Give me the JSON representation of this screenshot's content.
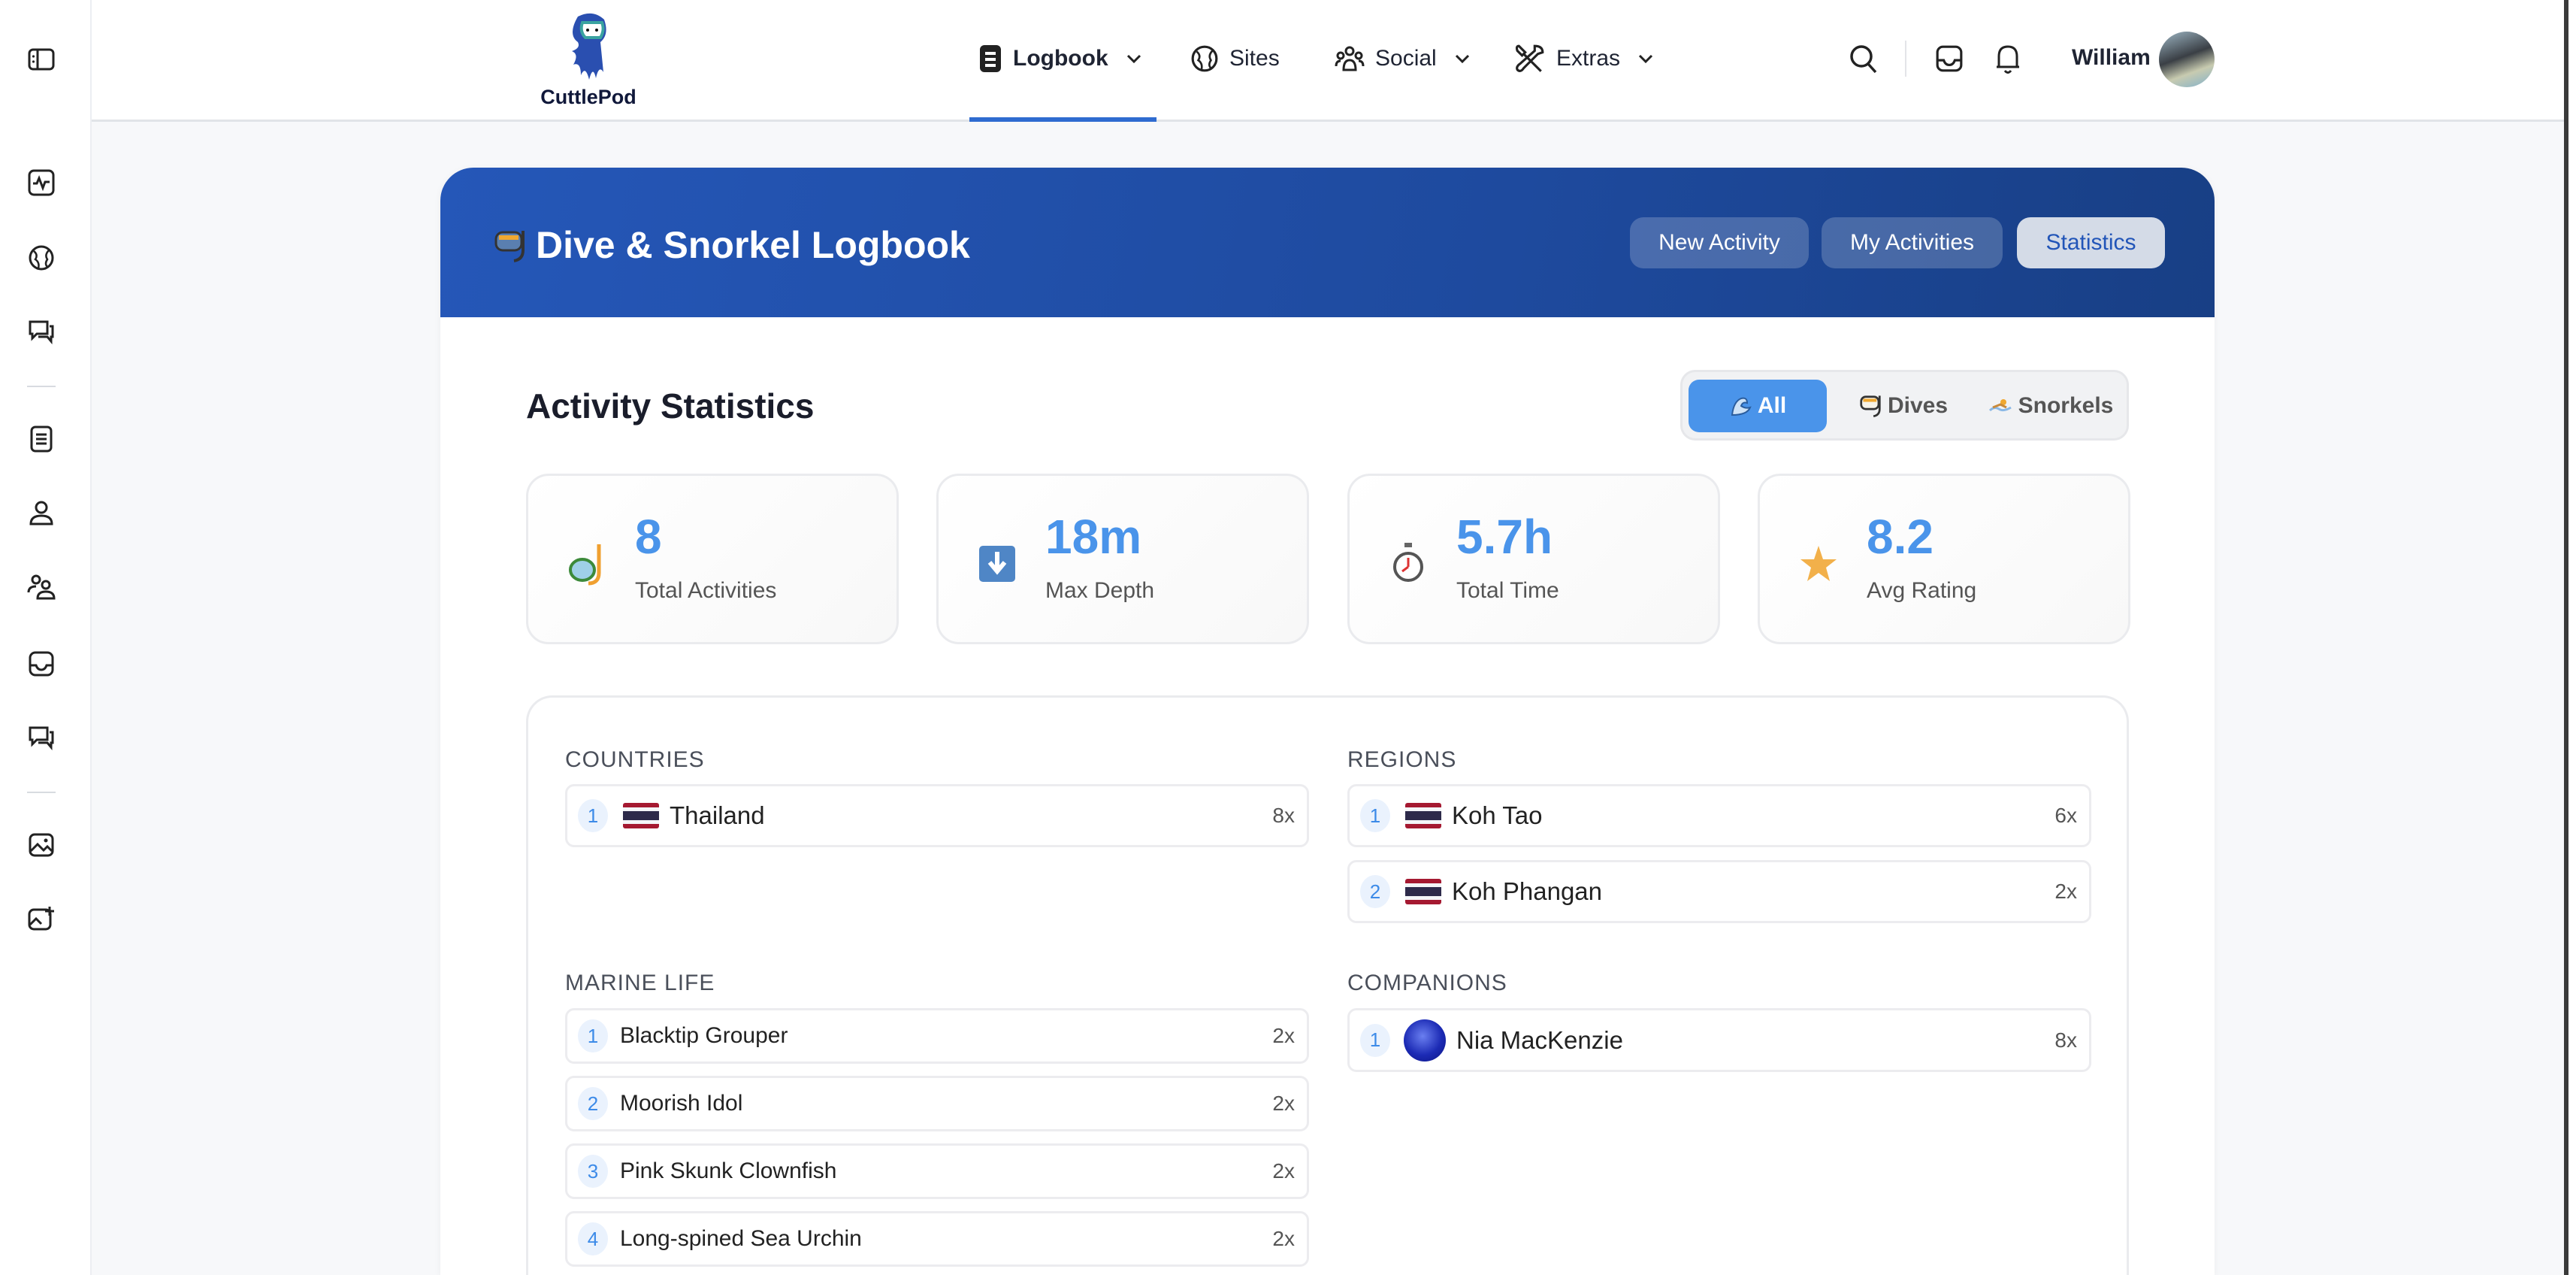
{
  "brand": {
    "name": "CuttlePod"
  },
  "nav": {
    "items": [
      {
        "label": "Logbook",
        "icon": "logbook-icon",
        "dropdown": true,
        "active": true
      },
      {
        "label": "Sites",
        "icon": "globe-icon",
        "dropdown": false
      },
      {
        "label": "Social",
        "icon": "users-icon",
        "dropdown": true
      },
      {
        "label": "Extras",
        "icon": "tools-icon",
        "dropdown": true
      }
    ],
    "right_icons": [
      "search-icon",
      "inbox-icon",
      "bell-icon"
    ]
  },
  "user": {
    "name": "William"
  },
  "sidebar": {
    "icons": [
      "sidebar-toggle-icon",
      "activity-icon",
      "globe-icon",
      "chat-icon",
      "logbook-icon",
      "user-icon",
      "users-icon",
      "inbox-icon",
      "messages-icon",
      "gallery-icon",
      "add-photo-icon"
    ]
  },
  "header": {
    "title": "Dive & Snorkel Logbook",
    "buttons": [
      "New Activity",
      "My Activities",
      "Statistics"
    ],
    "active_button": "Statistics"
  },
  "stats": {
    "title": "Activity Statistics",
    "filters": [
      "All",
      "Dives",
      "Snorkels"
    ],
    "active_filter": "All",
    "cards": [
      {
        "value": "8",
        "label": "Total Activities",
        "icon": "snorkel-mask-icon"
      },
      {
        "value": "18m",
        "label": "Max Depth",
        "icon": "down-arrow-icon"
      },
      {
        "value": "5.7h",
        "label": "Total Time",
        "icon": "stopwatch-icon"
      },
      {
        "value": "8.2",
        "label": "Avg Rating",
        "icon": "star-icon"
      }
    ]
  },
  "lists": {
    "countries": {
      "title": "COUNTRIES",
      "items": [
        {
          "rank": "1",
          "name": "Thailand",
          "count": "8x"
        }
      ]
    },
    "regions": {
      "title": "REGIONS",
      "items": [
        {
          "rank": "1",
          "name": "Koh Tao",
          "count": "6x"
        },
        {
          "rank": "2",
          "name": "Koh Phangan",
          "count": "2x"
        }
      ]
    },
    "marine_life": {
      "title": "MARINE LIFE",
      "items": [
        {
          "rank": "1",
          "name": "Blacktip Grouper",
          "count": "2x"
        },
        {
          "rank": "2",
          "name": "Moorish Idol",
          "count": "2x"
        },
        {
          "rank": "3",
          "name": "Pink Skunk Clownfish",
          "count": "2x"
        },
        {
          "rank": "4",
          "name": "Long-spined Sea Urchin",
          "count": "2x"
        }
      ]
    },
    "companions": {
      "title": "COMPANIONS",
      "items": [
        {
          "rank": "1",
          "name": "Nia MacKenzie",
          "count": "8x"
        }
      ]
    }
  },
  "colors": {
    "accent": "#4a94ea",
    "header_blue": "#2255b8",
    "nav_underline": "#2f6bd0",
    "star": "#f2b04a"
  }
}
